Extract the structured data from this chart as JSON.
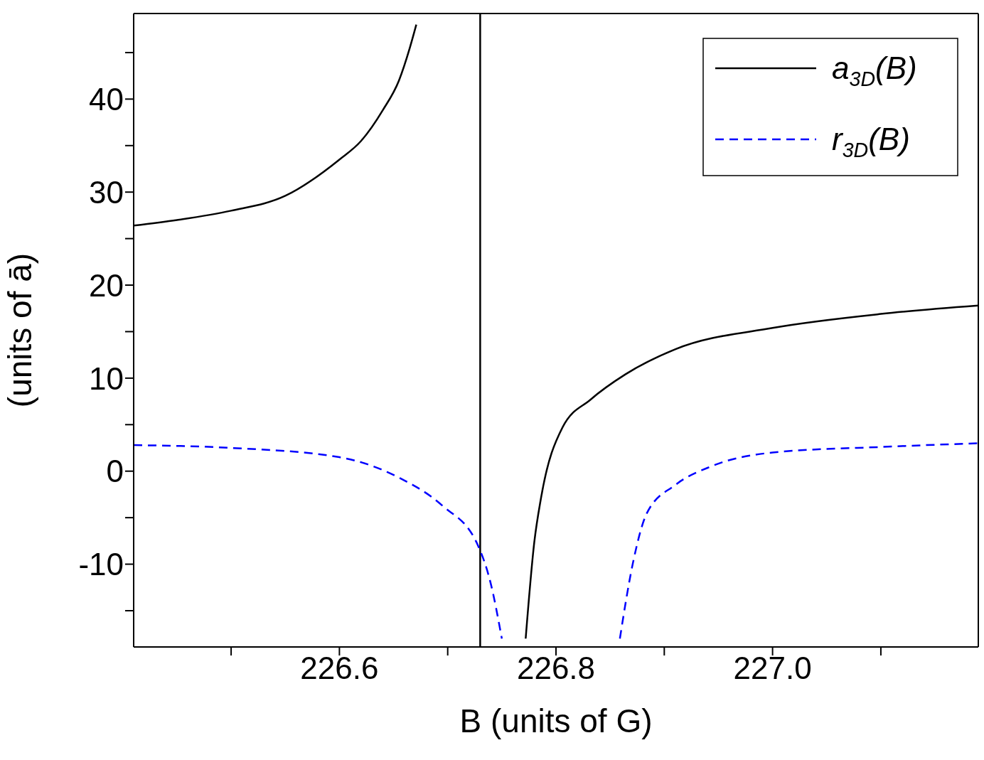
{
  "chart_data": {
    "type": "line",
    "xlabel": "B (units of G)",
    "ylabel": "(units of ā)",
    "xlim": [
      226.41,
      227.19
    ],
    "ylim": [
      -18.9,
      49.2
    ],
    "xticks": [
      {
        "value": 226.5,
        "label": null
      },
      226.6,
      {
        "value": 226.7,
        "label": null
      },
      226.8,
      {
        "value": 226.9,
        "label": null
      },
      {
        "value": 227.0,
        "label": "227.0"
      },
      {
        "value": 227.1,
        "label": null
      }
    ],
    "yticks": [
      {
        "value": -15,
        "label": null
      },
      -10,
      {
        "value": -5,
        "label": null
      },
      0,
      {
        "value": 5,
        "label": null
      },
      10,
      {
        "value": 15,
        "label": null
      },
      20,
      {
        "value": 25,
        "label": null
      },
      30,
      {
        "value": 35,
        "label": null
      },
      40,
      {
        "value": 45,
        "label": null
      }
    ],
    "series": [
      {
        "name": "a$_{3D}$(B)",
        "color": "#000000",
        "line_style": "solid",
        "x": [
          226.41,
          226.45,
          226.5,
          226.55,
          226.6,
          226.62,
          226.64,
          226.655,
          226.665,
          226.671,
          226.73,
          226.772,
          226.78,
          226.786,
          226.806,
          226.832,
          226.864,
          226.91,
          227.0,
          227.1,
          227.19
        ],
        "values": [
          26.4,
          27.0,
          28.0,
          29.6,
          33.5,
          35.5,
          38.8,
          42.0,
          45.5,
          48.0,
          null,
          -18.0,
          -7.6,
          -3.0,
          4.7,
          7.7,
          10.4,
          13.1,
          15.4,
          16.9,
          17.8
        ]
      },
      {
        "name": "r$_{3D}$(B)",
        "color": "#0000ff",
        "line_style": "dashed",
        "x": [
          226.41,
          226.5,
          226.6,
          226.655,
          226.695,
          226.728,
          226.74,
          226.75,
          226.8,
          226.859,
          226.871,
          226.884,
          226.91,
          226.943,
          227.0,
          227.1,
          227.19
        ],
        "values": [
          2.8,
          2.5,
          1.5,
          -0.7,
          -3.7,
          -8.0,
          -12.2,
          -18.0,
          null,
          -18.0,
          -9.9,
          -4.5,
          -1.5,
          0.5,
          2.0,
          2.6,
          3.0
        ]
      }
    ],
    "ref_lines": [
      {
        "axis": "x",
        "value": 226.73,
        "color": "#000000"
      }
    ],
    "legend": "top right"
  }
}
